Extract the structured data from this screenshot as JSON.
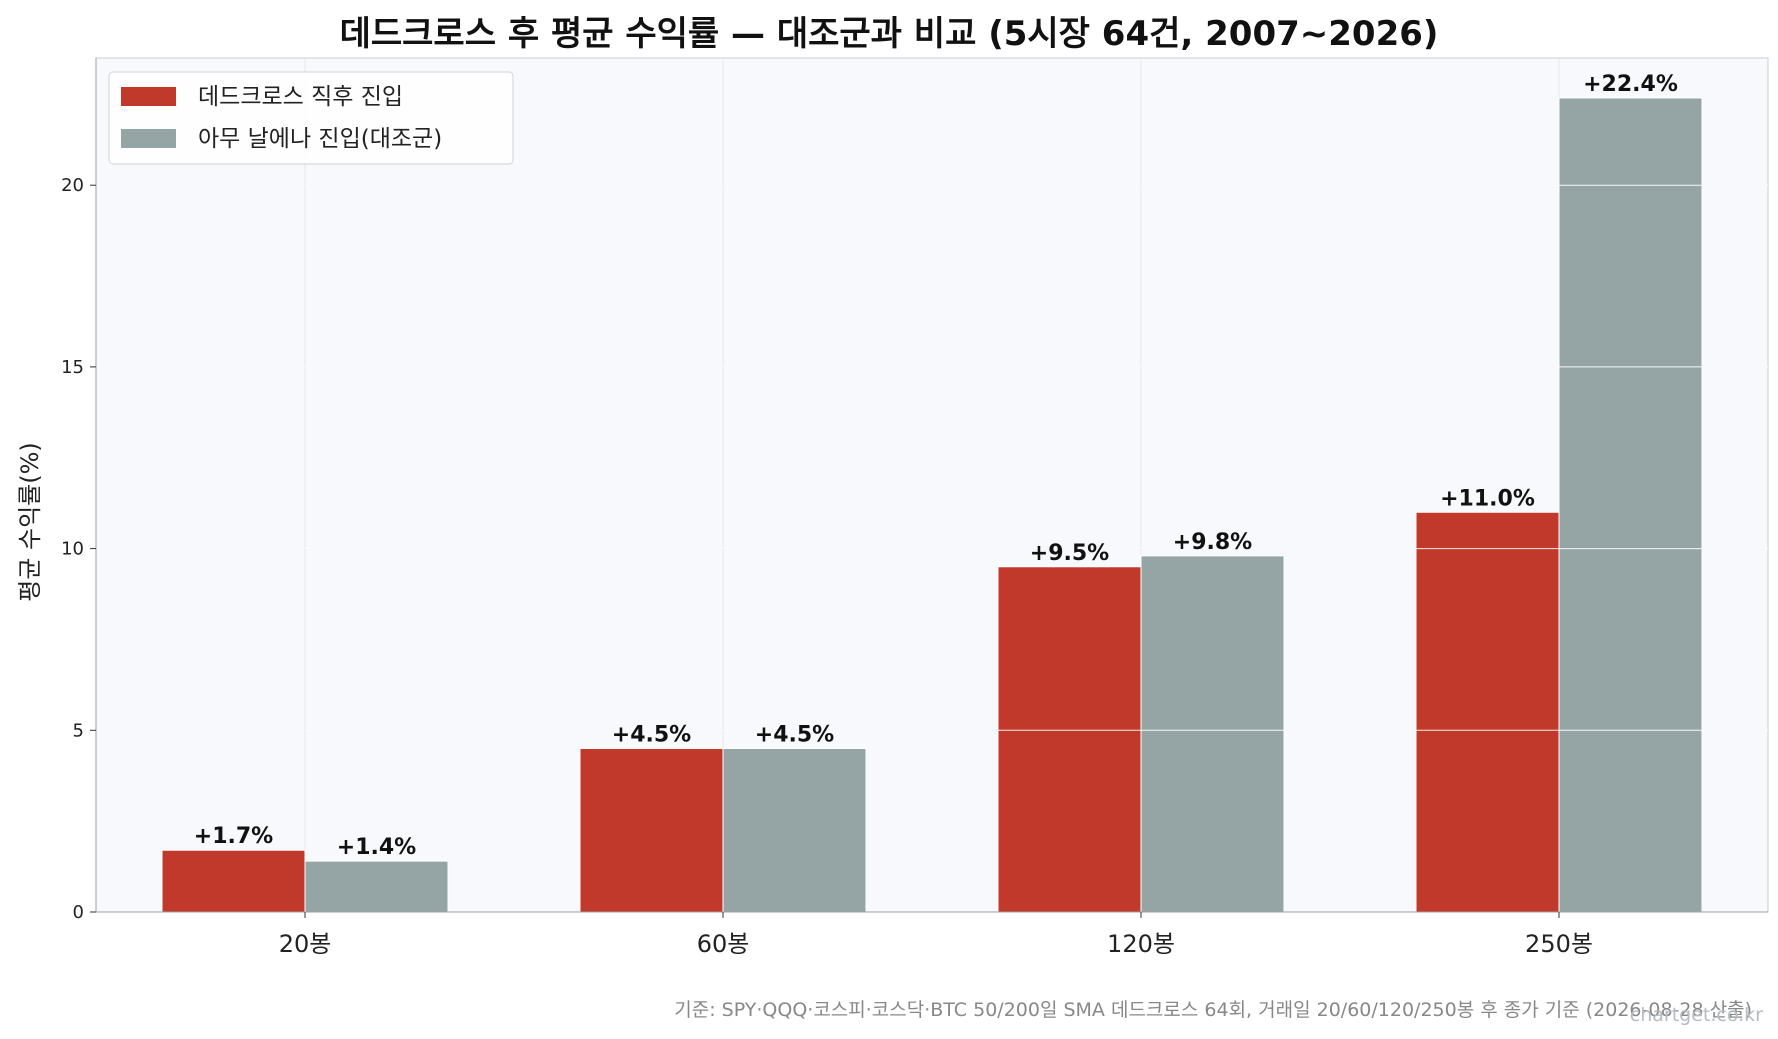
{
  "chart_data": {
    "type": "bar",
    "title": "데드크로스 후 평균 수익률 — 대조군과 비교 (5시장 64건, 2007~2026)",
    "xlabel": "",
    "ylabel": "평균 수익률(%)",
    "categories": [
      "20봉",
      "60봉",
      "120봉",
      "250봉"
    ],
    "series": [
      {
        "name": "데드크로스 직후 진입",
        "color": "#c0392b",
        "values": [
          1.7,
          4.5,
          9.5,
          11.0
        ],
        "labels": [
          "+1.7%",
          "+4.5%",
          "+9.5%",
          "+11.0%"
        ]
      },
      {
        "name": "아무 날에나 진입(대조군)",
        "color": "#95a5a6",
        "values": [
          1.4,
          4.5,
          9.8,
          22.4
        ],
        "labels": [
          "+1.4%",
          "+4.5%",
          "+9.8%",
          "+22.4%"
        ]
      }
    ],
    "ylim": [
      0,
      23.5
    ],
    "yticks": [
      0,
      5,
      10,
      15,
      20
    ],
    "grid": true,
    "legend_position": "top-left",
    "background": "#f8f9fc"
  },
  "footer": "기준: SPY·QQQ·코스피·코스닥·BTC 50/200일 SMA 데드크로스 64회, 거래일 20/60/120/250봉 후 종가 기준 (2026-08-28 산출)",
  "watermark": "chartget.co.kr"
}
